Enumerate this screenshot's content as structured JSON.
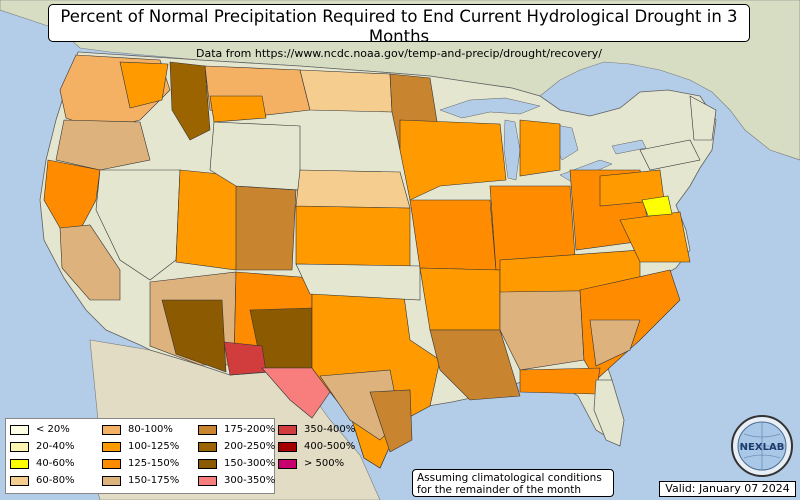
{
  "title": "Percent of Normal Precipitation Required to End Current Hydrological Drought in 3 Months",
  "subtitle": "Data from https://www.ncdc.noaa.gov/temp-and-precip/drought/recovery/",
  "legend": [
    {
      "label": "< 20%",
      "color": "#ffffe6"
    },
    {
      "label": "20-40%",
      "color": "#fff5b3"
    },
    {
      "label": "40-60%",
      "color": "#ffff00"
    },
    {
      "label": "60-80%",
      "color": "#f5cd8f"
    },
    {
      "label": "80-100%",
      "color": "#f5b163"
    },
    {
      "label": "100-125%",
      "color": "#ff9a00"
    },
    {
      "label": "125-150%",
      "color": "#ff8c00"
    },
    {
      "label": "150-175%",
      "color": "#ddb27c"
    },
    {
      "label": "175-200%",
      "color": "#c8842f"
    },
    {
      "label": "200-250%",
      "color": "#9b6400"
    },
    {
      "label": "150-300%",
      "color": "#8c5a00"
    },
    {
      "label": "300-350%",
      "color": "#f87d7d"
    },
    {
      "label": "350-400%",
      "color": "#d13c3c"
    },
    {
      "label": "400-500%",
      "color": "#a50000"
    },
    {
      "label": "> 500%",
      "color": "#c8006e"
    }
  ],
  "note": {
    "line1": "Assuming climatological conditions",
    "line2": "for the remainder of the month"
  },
  "valid": "Valid: January 07 2024",
  "logo_text": "NEXLAB",
  "colors": {
    "ocean": "#b3cde8",
    "land": "#e2e6cf",
    "canada": "#d8dfc6",
    "mexico": "#e6e0c8"
  }
}
